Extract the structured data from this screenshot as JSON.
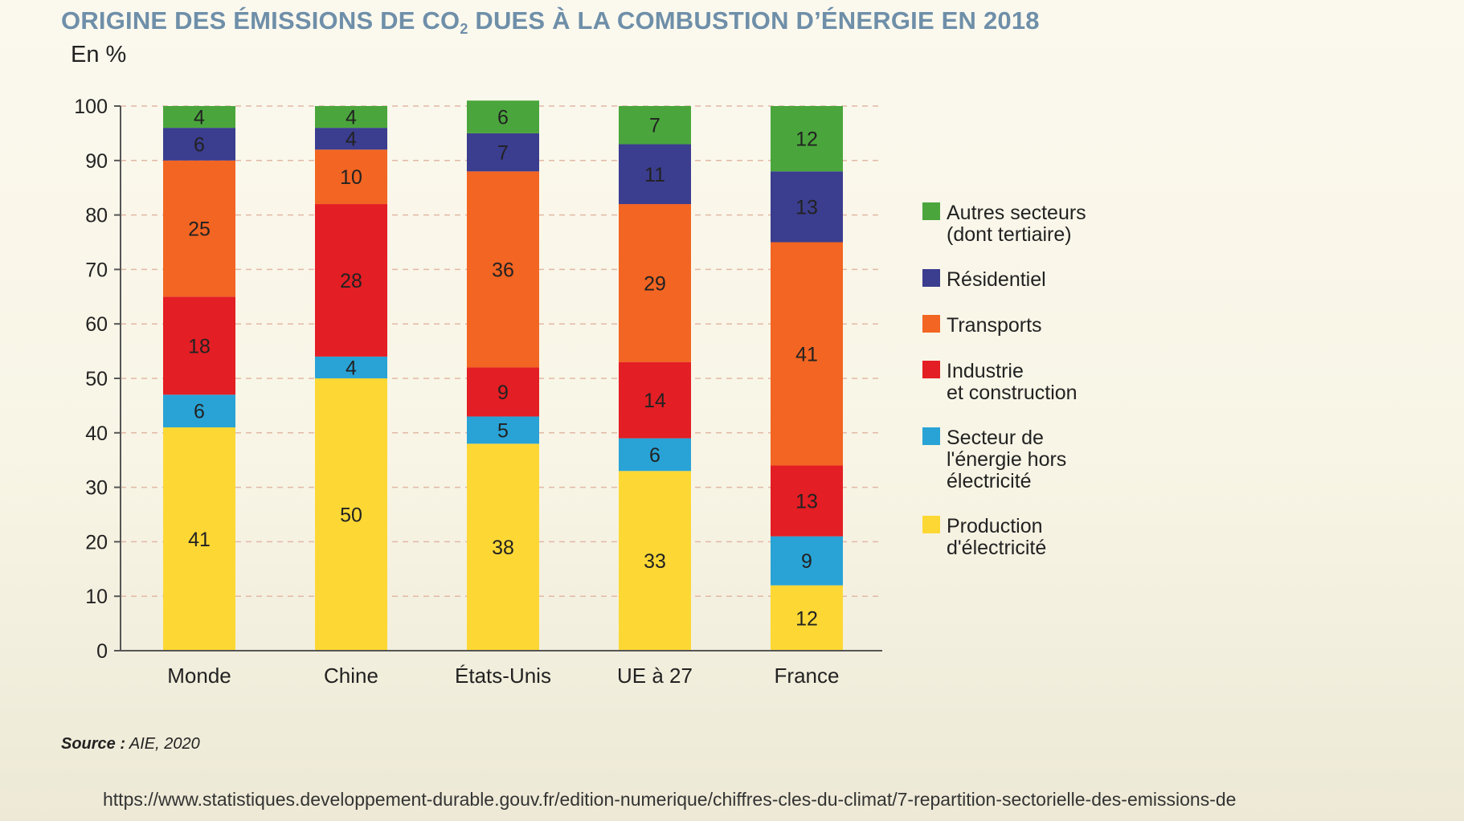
{
  "title": {
    "main": "ORIGINE DES ÉMISSIONS DE CO",
    "subscript": "2",
    "rest": " DUES À LA COMBUSTION D’ÉNERGIE EN 2018"
  },
  "unit": "En %",
  "source": {
    "label": "Source :",
    "value": "AIE, 2020"
  },
  "url": "https://www.statistiques.developpement-durable.gouv.fr/edition-numerique/chiffres-cles-du-climat/7-repartition-sectorielle-des-emissions-de",
  "chart_data": {
    "type": "bar",
    "stacked": true,
    "title": "ORIGINE DES ÉMISSIONS DE CO2 DUES À LA COMBUSTION D’ÉNERGIE EN 2018",
    "ylabel": "En %",
    "xlabel": "",
    "ylim": [
      0,
      100
    ],
    "yticks": [
      0,
      10,
      20,
      30,
      40,
      50,
      60,
      70,
      80,
      90,
      100
    ],
    "grid": "horizontal-dashed",
    "legend_position": "right",
    "categories": [
      "Monde",
      "Chine",
      "États-Unis",
      "UE à 27",
      "France"
    ],
    "series": [
      {
        "name": "Production d'électricité",
        "legend_lines": [
          "Production",
          "d'électricité"
        ],
        "color": "#fdd835",
        "values": [
          41,
          50,
          38,
          33,
          12
        ]
      },
      {
        "name": "Secteur de l'énergie hors électricité",
        "legend_lines": [
          "Secteur de",
          "l'énergie hors",
          "électricité"
        ],
        "color": "#29a3d6",
        "values": [
          6,
          4,
          5,
          6,
          9
        ]
      },
      {
        "name": "Industrie et construction",
        "legend_lines": [
          "Industrie",
          "et construction"
        ],
        "color": "#e31e24",
        "values": [
          18,
          28,
          9,
          14,
          13
        ]
      },
      {
        "name": "Transports",
        "legend_lines": [
          "Transports"
        ],
        "color": "#f26522",
        "values": [
          25,
          10,
          36,
          29,
          41
        ]
      },
      {
        "name": "Résidentiel",
        "legend_lines": [
          "Résidentiel"
        ],
        "color": "#3b3d8f",
        "values": [
          6,
          4,
          7,
          11,
          13
        ]
      },
      {
        "name": "Autres secteurs (dont tertiaire)",
        "legend_lines": [
          "Autres secteurs",
          "(dont tertiaire)"
        ],
        "color": "#4aa63c",
        "values": [
          4,
          4,
          6,
          7,
          12
        ]
      }
    ]
  }
}
